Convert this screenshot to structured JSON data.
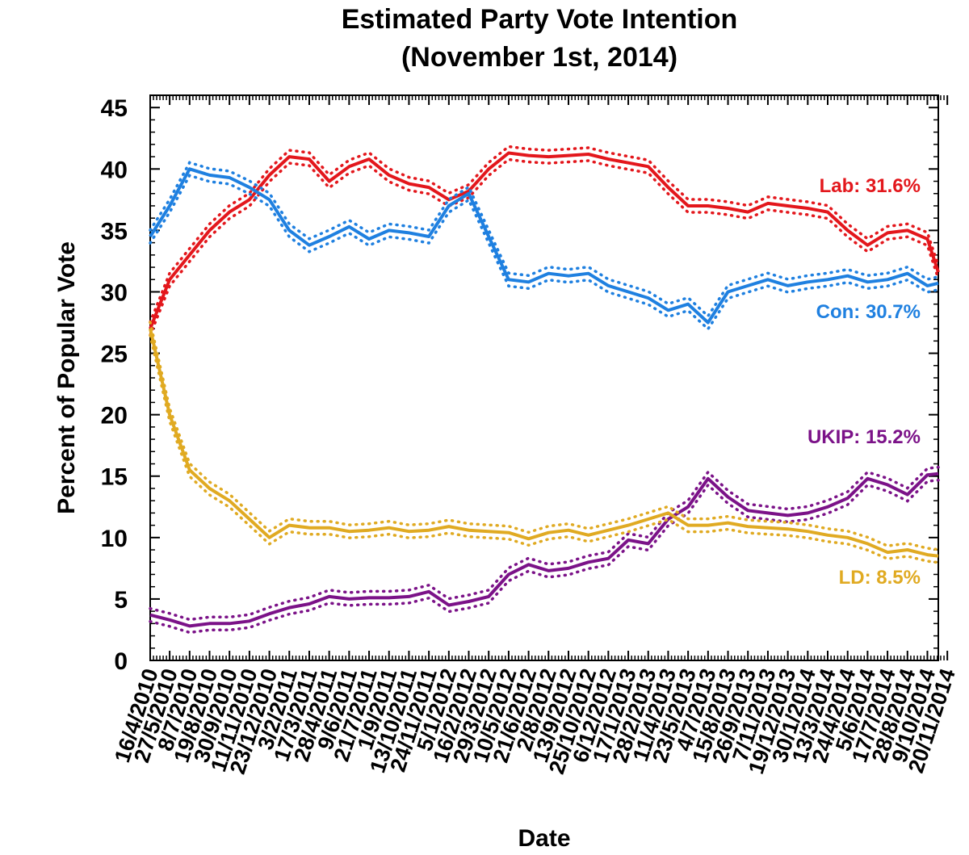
{
  "chart_data": {
    "type": "line",
    "title": "Estimated Party Vote Intention",
    "subtitle": "(November 1st, 2014)",
    "xlabel": "Date",
    "ylabel": "Percent of Popular Vote",
    "ylim": [
      0,
      46
    ],
    "yticks": [
      0,
      5,
      10,
      15,
      20,
      25,
      30,
      35,
      40,
      45
    ],
    "xtick_labels": [
      "16/4/2010",
      "27/5/2010",
      "8/7/2010",
      "19/8/2010",
      "30/9/2010",
      "11/11/2010",
      "23/12/2010",
      "3/2/2011",
      "17/3/2011",
      "28/4/2011",
      "9/6/2011",
      "21/7/2011",
      "1/9/2011",
      "13/10/2011",
      "24/11/2011",
      "5/1/2012",
      "16/2/2012",
      "29/3/2012",
      "10/5/2012",
      "21/6/2012",
      "2/8/2012",
      "13/9/2012",
      "25/10/2012",
      "6/12/2012",
      "17/1/2013",
      "28/2/2013",
      "11/4/2013",
      "23/5/2013",
      "4/7/2013",
      "15/8/2013",
      "26/9/2013",
      "7/11/2013",
      "19/12/2013",
      "30/1/2014",
      "13/3/2014",
      "24/4/2014",
      "5/6/2014",
      "17/7/2014",
      "28/8/2014",
      "9/10/2014",
      "20/11/2014"
    ],
    "x_start": "16/4/2010",
    "x_end": "1/11/2014",
    "grid": false,
    "series": [
      {
        "name": "Lab",
        "label": "Lab: 31.6%",
        "color": "#e3171c",
        "x": [
          "16/4/2010",
          "27/5/2010",
          "8/7/2010",
          "19/8/2010",
          "30/9/2010",
          "11/11/2010",
          "23/12/2010",
          "3/2/2011",
          "17/3/2011",
          "28/4/2011",
          "9/6/2011",
          "21/7/2011",
          "1/9/2011",
          "13/10/2011",
          "24/11/2011",
          "5/1/2012",
          "16/2/2012",
          "29/3/2012",
          "10/5/2012",
          "21/6/2012",
          "2/8/2012",
          "13/9/2012",
          "25/10/2012",
          "6/12/2012",
          "17/1/2013",
          "28/2/2013",
          "11/4/2013",
          "23/5/2013",
          "4/7/2013",
          "15/8/2013",
          "26/9/2013",
          "7/11/2013",
          "19/12/2013",
          "30/1/2014",
          "13/3/2014",
          "24/4/2014",
          "5/6/2014",
          "17/7/2014",
          "28/8/2014",
          "9/10/2014",
          "1/11/2014"
        ],
        "values": [
          27,
          31,
          33,
          35,
          36.5,
          37.5,
          39.5,
          41,
          40.8,
          39,
          40.2,
          40.8,
          39.5,
          38.8,
          38.5,
          37.5,
          38.2,
          40,
          41.3,
          41.1,
          41,
          41.1,
          41.2,
          40.8,
          40.5,
          40.2,
          38.5,
          37,
          37,
          36.8,
          36.5,
          37.2,
          37,
          36.8,
          36.5,
          35,
          33.8,
          34.8,
          35,
          34.3,
          31.6
        ]
      },
      {
        "name": "Con",
        "label": "Con: 30.7%",
        "color": "#1f80e0",
        "x": [
          "16/4/2010",
          "27/5/2010",
          "8/7/2010",
          "19/8/2010",
          "30/9/2010",
          "11/11/2010",
          "23/12/2010",
          "3/2/2011",
          "17/3/2011",
          "28/4/2011",
          "9/6/2011",
          "21/7/2011",
          "1/9/2011",
          "13/10/2011",
          "24/11/2011",
          "5/1/2012",
          "16/2/2012",
          "29/3/2012",
          "10/5/2012",
          "21/6/2012",
          "2/8/2012",
          "13/9/2012",
          "25/10/2012",
          "6/12/2012",
          "17/1/2013",
          "28/2/2013",
          "11/4/2013",
          "23/5/2013",
          "4/7/2013",
          "15/8/2013",
          "26/9/2013",
          "7/11/2013",
          "19/12/2013",
          "30/1/2014",
          "13/3/2014",
          "24/4/2014",
          "5/6/2014",
          "17/7/2014",
          "28/8/2014",
          "9/10/2014",
          "1/11/2014"
        ],
        "values": [
          34.5,
          37,
          40,
          39.5,
          39.3,
          38.5,
          37.5,
          35,
          33.8,
          34.5,
          35.3,
          34.3,
          35,
          34.8,
          34.5,
          37,
          38,
          34.5,
          31,
          30.8,
          31.5,
          31.3,
          31.5,
          30.5,
          30,
          29.5,
          28.5,
          29,
          27.5,
          30,
          30.5,
          31,
          30.5,
          30.8,
          31,
          31.3,
          30.8,
          31,
          31.5,
          30.5,
          30.7
        ]
      },
      {
        "name": "UKIP",
        "label": "UKIP: 15.2%",
        "color": "#7b1288",
        "x": [
          "16/4/2010",
          "27/5/2010",
          "8/7/2010",
          "19/8/2010",
          "30/9/2010",
          "11/11/2010",
          "23/12/2010",
          "3/2/2011",
          "17/3/2011",
          "28/4/2011",
          "9/6/2011",
          "21/7/2011",
          "1/9/2011",
          "13/10/2011",
          "24/11/2011",
          "5/1/2012",
          "16/2/2012",
          "29/3/2012",
          "10/5/2012",
          "21/6/2012",
          "2/8/2012",
          "13/9/2012",
          "25/10/2012",
          "6/12/2012",
          "17/1/2013",
          "28/2/2013",
          "11/4/2013",
          "23/5/2013",
          "4/7/2013",
          "15/8/2013",
          "26/9/2013",
          "7/11/2013",
          "19/12/2013",
          "30/1/2014",
          "13/3/2014",
          "24/4/2014",
          "5/6/2014",
          "17/7/2014",
          "28/8/2014",
          "9/10/2014",
          "1/11/2014"
        ],
        "values": [
          3.7,
          3.3,
          2.8,
          3,
          3,
          3.2,
          3.8,
          4.3,
          4.6,
          5.2,
          5,
          5.1,
          5.1,
          5.2,
          5.6,
          4.5,
          4.8,
          5.2,
          7,
          7.8,
          7.3,
          7.5,
          8,
          8.3,
          9.8,
          9.5,
          11.5,
          12.5,
          14.8,
          13.3,
          12.2,
          12,
          11.8,
          12,
          12.5,
          13.2,
          14.8,
          14.3,
          13.5,
          15.1,
          15.2
        ]
      },
      {
        "name": "LD",
        "label": "LD: 8.5%",
        "color": "#e0aa22",
        "x": [
          "16/4/2010",
          "27/5/2010",
          "8/7/2010",
          "19/8/2010",
          "30/9/2010",
          "11/11/2010",
          "23/12/2010",
          "3/2/2011",
          "17/3/2011",
          "28/4/2011",
          "9/6/2011",
          "21/7/2011",
          "1/9/2011",
          "13/10/2011",
          "24/11/2011",
          "5/1/2012",
          "16/2/2012",
          "29/3/2012",
          "10/5/2012",
          "21/6/2012",
          "2/8/2012",
          "13/9/2012",
          "25/10/2012",
          "6/12/2012",
          "17/1/2013",
          "28/2/2013",
          "11/4/2013",
          "23/5/2013",
          "4/7/2013",
          "15/8/2013",
          "26/9/2013",
          "7/11/2013",
          "19/12/2013",
          "30/1/2014",
          "13/3/2014",
          "24/4/2014",
          "5/6/2014",
          "17/7/2014",
          "28/8/2014",
          "9/10/2014",
          "1/11/2014"
        ],
        "values": [
          27,
          20,
          15.5,
          14,
          13,
          11.5,
          10,
          11,
          10.8,
          10.8,
          10.5,
          10.6,
          10.8,
          10.5,
          10.6,
          10.9,
          10.6,
          10.5,
          10.4,
          9.9,
          10.4,
          10.6,
          10.2,
          10.6,
          11,
          11.5,
          12,
          11,
          11,
          11.2,
          10.9,
          10.8,
          10.7,
          10.5,
          10.2,
          10,
          9.5,
          8.8,
          9,
          8.6,
          8.5
        ]
      }
    ]
  }
}
